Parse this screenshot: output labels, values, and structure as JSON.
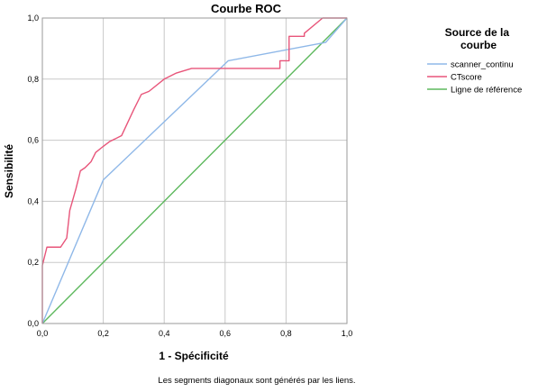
{
  "chart_data": {
    "type": "line",
    "title": "Courbe ROC",
    "xlabel": "1 - Spécificité",
    "ylabel": "Sensibilité",
    "xlim": [
      0,
      1
    ],
    "ylim": [
      0,
      1
    ],
    "grid": true,
    "legend_position": "right",
    "x_ticks": [
      "0,0",
      "0,2",
      "0,4",
      "0,6",
      "0,8",
      "1,0"
    ],
    "y_ticks": [
      "0,0",
      "0,2",
      "0,4",
      "0,6",
      "0,8",
      "1,0"
    ],
    "legend_title": [
      "Source de la",
      "courbe"
    ],
    "footnote": "Les segments diagonaux sont générés par les liens.",
    "series": [
      {
        "name": "scanner_continu",
        "color": "#8fb8e8",
        "points": [
          [
            0,
            0
          ],
          [
            0.2,
            0.47
          ],
          [
            0.61,
            0.86
          ],
          [
            0.93,
            0.92
          ],
          [
            1.0,
            1.0
          ]
        ]
      },
      {
        "name": "CTscore",
        "color": "#e8557a",
        "points": [
          [
            0,
            0
          ],
          [
            0,
            0.19
          ],
          [
            0.015,
            0.25
          ],
          [
            0.06,
            0.25
          ],
          [
            0.08,
            0.28
          ],
          [
            0.09,
            0.37
          ],
          [
            0.11,
            0.44
          ],
          [
            0.125,
            0.5
          ],
          [
            0.14,
            0.51
          ],
          [
            0.16,
            0.53
          ],
          [
            0.175,
            0.56
          ],
          [
            0.2,
            0.58
          ],
          [
            0.22,
            0.595
          ],
          [
            0.26,
            0.615
          ],
          [
            0.3,
            0.7
          ],
          [
            0.325,
            0.75
          ],
          [
            0.35,
            0.76
          ],
          [
            0.4,
            0.8
          ],
          [
            0.44,
            0.82
          ],
          [
            0.49,
            0.835
          ],
          [
            0.78,
            0.835
          ],
          [
            0.78,
            0.86
          ],
          [
            0.81,
            0.86
          ],
          [
            0.81,
            0.94
          ],
          [
            0.86,
            0.94
          ],
          [
            0.86,
            0.95
          ],
          [
            0.92,
            1.0
          ],
          [
            1.0,
            1.0
          ]
        ]
      },
      {
        "name": "Ligne de référence",
        "color": "#5db85d",
        "points": [
          [
            0,
            0
          ],
          [
            1,
            1
          ]
        ]
      }
    ]
  }
}
